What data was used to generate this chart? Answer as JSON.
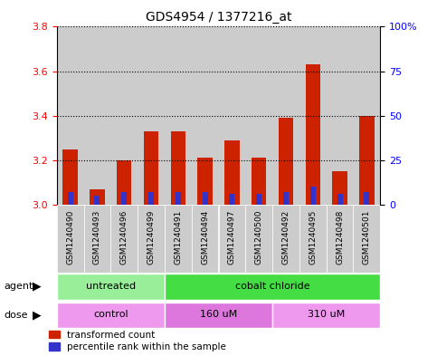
{
  "title": "GDS4954 / 1377216_at",
  "samples": [
    "GSM1240490",
    "GSM1240493",
    "GSM1240496",
    "GSM1240499",
    "GSM1240491",
    "GSM1240494",
    "GSM1240497",
    "GSM1240500",
    "GSM1240492",
    "GSM1240495",
    "GSM1240498",
    "GSM1240501"
  ],
  "transformed_count": [
    3.25,
    3.07,
    3.2,
    3.33,
    3.33,
    3.21,
    3.29,
    3.21,
    3.39,
    3.63,
    3.15,
    3.4
  ],
  "baseline": 3.0,
  "percentile_rank": [
    7,
    5,
    7,
    7,
    7,
    7,
    6,
    6,
    7,
    10,
    6,
    7
  ],
  "ylim_left": [
    3.0,
    3.8
  ],
  "ylim_right": [
    0,
    100
  ],
  "yticks_left": [
    3.0,
    3.2,
    3.4,
    3.6,
    3.8
  ],
  "yticks_right": [
    0,
    25,
    50,
    75,
    100
  ],
  "ytick_labels_right": [
    "0",
    "25",
    "50",
    "75",
    "100%"
  ],
  "bar_color_red": "#cc2200",
  "bar_color_blue": "#3333cc",
  "agent_groups": [
    {
      "label": "untreated",
      "start": 0,
      "end": 4,
      "color": "#99ee99"
    },
    {
      "label": "cobalt chloride",
      "start": 4,
      "end": 12,
      "color": "#44dd44"
    }
  ],
  "dose_groups": [
    {
      "label": "control",
      "start": 0,
      "end": 4,
      "color": "#ee99ee"
    },
    {
      "label": "160 uM",
      "start": 4,
      "end": 8,
      "color": "#dd77dd"
    },
    {
      "label": "310 uM",
      "start": 8,
      "end": 12,
      "color": "#ee99ee"
    }
  ],
  "sample_bg_color": "#cccccc",
  "agent_label": "agent",
  "dose_label": "dose",
  "legend_red": "transformed count",
  "legend_blue": "percentile rank within the sample",
  "bar_width": 0.55,
  "blue_bar_width": 0.2
}
